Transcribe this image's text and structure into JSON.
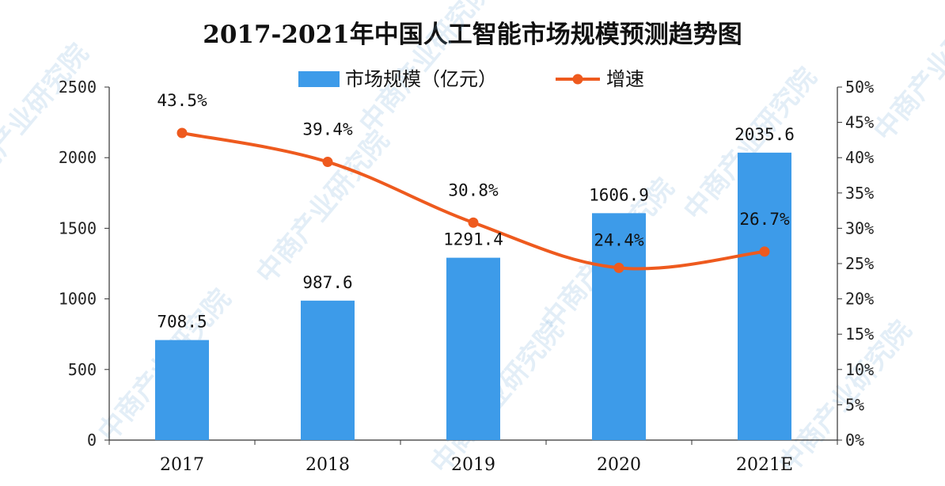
{
  "chart_data": {
    "type": "bar",
    "title": "2017-2021年中国人工智能市场规模预测趋势图",
    "categories": [
      "2017",
      "2018",
      "2019",
      "2020",
      "2021E"
    ],
    "series": [
      {
        "name": "市场规模（亿元）",
        "type": "bar",
        "axis": "left",
        "values": [
          708.5,
          987.6,
          1291.4,
          1606.9,
          2035.6
        ],
        "labels": [
          "708.5",
          "987.6",
          "1291.4",
          "1606.9",
          "2035.6"
        ]
      },
      {
        "name": "增速",
        "type": "line",
        "axis": "right",
        "values": [
          43.5,
          39.4,
          30.8,
          24.4,
          26.7
        ],
        "labels": [
          "43.5%",
          "39.4%",
          "30.8%",
          "24.4%",
          "26.7%"
        ]
      }
    ],
    "left_axis": {
      "ylim": [
        0,
        2500
      ],
      "ticks": [
        "0",
        "500",
        "1000",
        "1500",
        "2000",
        "2500"
      ]
    },
    "right_axis": {
      "ylim": [
        0,
        50
      ],
      "ticks": [
        "0%",
        "5%",
        "10%",
        "15%",
        "20%",
        "25%",
        "30%",
        "35%",
        "40%",
        "45%",
        "50%"
      ]
    },
    "legend_position": "top",
    "grid": false
  },
  "colors": {
    "bar": "#3d9be9",
    "line": "#ee5a1e",
    "axis": "#333333"
  },
  "watermark": "中商产业研究院"
}
